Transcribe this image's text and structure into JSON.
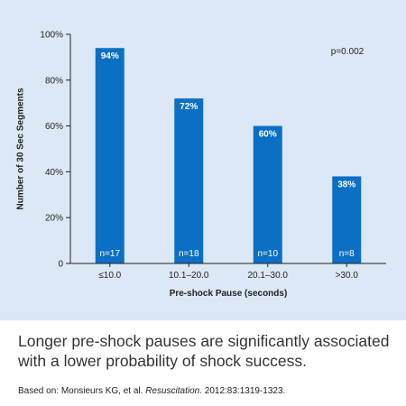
{
  "chart_data": {
    "type": "bar",
    "categories": [
      "≤10.0",
      "10.1–20.0",
      "20.1–30.0",
      ">30.0"
    ],
    "values": [
      94,
      72,
      60,
      38
    ],
    "value_labels": [
      "94%",
      "72%",
      "60%",
      "38%"
    ],
    "n_labels": [
      "n=17",
      "n=18",
      "n=10",
      "n=8"
    ],
    "title": "",
    "xlabel": "Pre-shock Pause (seconds)",
    "ylabel": "Number of 30 Sec Segments",
    "ylim": [
      0,
      100
    ],
    "yticks": [
      0,
      20,
      40,
      60,
      80,
      100
    ],
    "ytick_labels": [
      "0",
      "20%",
      "40%",
      "60%",
      "80%",
      "100%"
    ],
    "annotation": "p=0.002",
    "bar_color": "#0b6fc4",
    "background_color": "#dce8f5",
    "grid": false,
    "legend": "none"
  },
  "caption": "Longer pre-shock pauses are significantly associated with a lower probability of shock success.",
  "citation": {
    "prefix": "Based on: Monsieurs KG, et al. ",
    "journal": "Resuscitation.",
    "suffix": " 2012:83:1319-1323."
  }
}
